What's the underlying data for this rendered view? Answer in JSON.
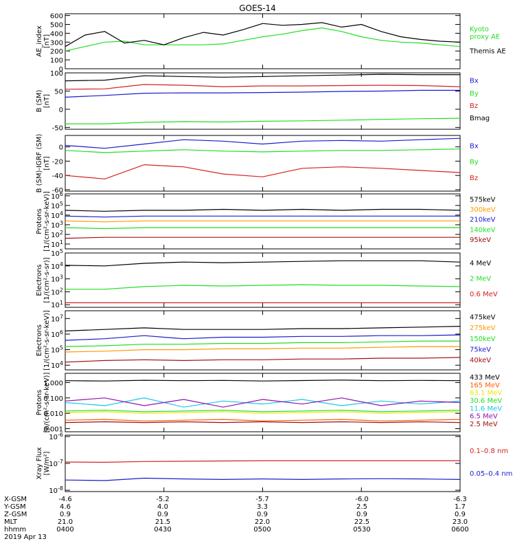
{
  "title": "GOES-14",
  "colors": {
    "black": "#000000",
    "red": "#d42020",
    "green": "#22dd22",
    "blue": "#1a1ad0",
    "orange": "#ff9900",
    "darkred": "#a01010",
    "yellow": "#e8e800",
    "cyan": "#18c8e8",
    "purple": "#9010b0",
    "orangered": "#ff5a00"
  },
  "footer": {
    "rows": [
      {
        "label": "X-GSM",
        "values": [
          "-4.6",
          "-5.2",
          "-5.7",
          "-6.0",
          "-6.3"
        ]
      },
      {
        "label": "Y-GSM",
        "values": [
          "4.6",
          "4.0",
          "3.3",
          "2.5",
          "1.7"
        ]
      },
      {
        "label": "Z-GSM",
        "values": [
          "0.9",
          "0.9",
          "0.9",
          "0.9",
          "0.9"
        ]
      },
      {
        "label": "MLT",
        "values": [
          "21.0",
          "21.5",
          "22.0",
          "22.5",
          "23.0"
        ]
      },
      {
        "label": "hhmm",
        "values": [
          "0400",
          "0430",
          "0500",
          "0530",
          "0600"
        ]
      }
    ],
    "date": "2019 Apr 13"
  },
  "chart_data": [
    {
      "type": "line",
      "ylabel": [
        "AE_index",
        "[nT]"
      ],
      "ylim": [
        0,
        620
      ],
      "yticks": [
        0,
        100,
        200,
        300,
        400,
        500,
        600
      ],
      "ytick_labels": [
        "0",
        "100",
        "200",
        "300",
        "400",
        "500",
        "600"
      ],
      "x": [
        0,
        0.05,
        0.1,
        0.15,
        0.2,
        0.25,
        0.3,
        0.35,
        0.4,
        0.45,
        0.5,
        0.55,
        0.6,
        0.65,
        0.7,
        0.75,
        0.8,
        0.85,
        0.9,
        0.95,
        1.0
      ],
      "series": [
        {
          "name": "Kyoto proxy AE",
          "legend": [
            "Kyoto",
            "proxy AE"
          ],
          "color": "green",
          "values": [
            200,
            250,
            300,
            310,
            270,
            270,
            270,
            270,
            280,
            320,
            360,
            390,
            430,
            460,
            420,
            360,
            320,
            300,
            290,
            270,
            250
          ]
        },
        {
          "name": "Themis AE",
          "legend": [
            "Themis AE"
          ],
          "color": "black",
          "values": [
            250,
            380,
            420,
            290,
            320,
            270,
            350,
            410,
            380,
            440,
            510,
            490,
            500,
            520,
            470,
            500,
            420,
            360,
            330,
            310,
            300
          ]
        }
      ]
    },
    {
      "type": "line",
      "ylabel": [
        "B (SM)",
        "[nT]"
      ],
      "ylim": [
        -55,
        100
      ],
      "yticks": [
        -50,
        0,
        50,
        100
      ],
      "ytick_labels": [
        "-50",
        "0",
        "50",
        "100"
      ],
      "x": [
        0,
        0.1,
        0.2,
        0.3,
        0.4,
        0.5,
        0.6,
        0.7,
        0.8,
        0.9,
        1.0
      ],
      "series": [
        {
          "name": "Bx",
          "legend": [
            "Bx"
          ],
          "color": "blue",
          "values": [
            33,
            38,
            44,
            45,
            45,
            46,
            47,
            49,
            50,
            52,
            52
          ]
        },
        {
          "name": "By",
          "legend": [
            "By"
          ],
          "color": "green",
          "values": [
            -40,
            -40,
            -36,
            -34,
            -35,
            -33,
            -32,
            -30,
            -28,
            -26,
            -25
          ]
        },
        {
          "name": "Bz",
          "legend": [
            "Bz"
          ],
          "color": "red",
          "values": [
            55,
            56,
            68,
            66,
            62,
            64,
            64,
            65,
            66,
            65,
            62
          ]
        },
        {
          "name": "Bmag",
          "legend": [
            "Bmag"
          ],
          "color": "black",
          "values": [
            78,
            80,
            92,
            90,
            88,
            90,
            92,
            94,
            96,
            95,
            95
          ]
        }
      ]
    },
    {
      "type": "line",
      "ylabel": [
        "B (SM)-IGRF (SM)",
        "[nT]"
      ],
      "ylim": [
        -62,
        16
      ],
      "yticks": [
        -60,
        -40,
        -20,
        0
      ],
      "ytick_labels": [
        "-60",
        "-40",
        "-20",
        "0"
      ],
      "x": [
        0,
        0.1,
        0.2,
        0.3,
        0.4,
        0.5,
        0.6,
        0.7,
        0.8,
        0.9,
        1.0
      ],
      "series": [
        {
          "name": "Bx",
          "legend": [
            "Bx"
          ],
          "color": "blue",
          "values": [
            2,
            -2,
            4,
            10,
            8,
            4,
            8,
            9,
            8,
            10,
            12
          ]
        },
        {
          "name": "By",
          "legend": [
            "By"
          ],
          "color": "green",
          "values": [
            -5,
            -8,
            -6,
            -4,
            -6,
            -7,
            -6,
            -5,
            -5,
            -4,
            -3
          ]
        },
        {
          "name": "Bz",
          "legend": [
            "Bz"
          ],
          "color": "red",
          "values": [
            -40,
            -45,
            -25,
            -28,
            -38,
            -42,
            -30,
            -28,
            -30,
            -33,
            -36
          ]
        }
      ]
    },
    {
      "type": "line",
      "log": true,
      "ylabel": [
        "Protons",
        "[1/(cm²-s-sr-keV)]"
      ],
      "ylim_log10": [
        0.5,
        6.2
      ],
      "yticks_exp": [
        1,
        2,
        3,
        4,
        5,
        6
      ],
      "x": [
        0,
        0.1,
        0.2,
        0.3,
        0.4,
        0.5,
        0.6,
        0.7,
        0.8,
        0.9,
        1.0
      ],
      "series": [
        {
          "name": "575keV",
          "legend": [
            "575keV"
          ],
          "color": "black",
          "values_log10": [
            4.5,
            4.4,
            4.5,
            4.5,
            4.6,
            4.5,
            4.6,
            4.5,
            4.6,
            4.6,
            4.5
          ]
        },
        {
          "name": "300keV",
          "legend": [
            "300keV"
          ],
          "color": "orange",
          "values_log10": [
            3.4,
            3.3,
            3.4,
            3.4,
            3.4,
            3.4,
            3.4,
            3.4,
            3.4,
            3.4,
            3.4
          ]
        },
        {
          "name": "210keV",
          "legend": [
            "210keV"
          ],
          "color": "blue",
          "values_log10": [
            3.9,
            3.8,
            3.9,
            3.9,
            3.9,
            3.9,
            3.9,
            3.9,
            3.9,
            3.9,
            3.9
          ]
        },
        {
          "name": "140keV",
          "legend": [
            "140keV"
          ],
          "color": "green",
          "values_log10": [
            2.7,
            2.6,
            2.7,
            2.7,
            2.7,
            2.7,
            2.7,
            2.7,
            2.7,
            2.7,
            2.7
          ]
        },
        {
          "name": "95keV",
          "legend": [
            "95keV"
          ],
          "color": "darkred",
          "values_log10": [
            1.6,
            1.7,
            1.7,
            1.7,
            1.7,
            1.7,
            1.7,
            1.7,
            1.7,
            1.7,
            1.7
          ]
        }
      ]
    },
    {
      "type": "line",
      "log": true,
      "ylabel": [
        "Electrons",
        "[1/(cm²-s-sr)]"
      ],
      "ylim_log10": [
        0.8,
        5.0
      ],
      "yticks_exp": [
        1,
        2,
        3,
        4,
        5
      ],
      "x": [
        0,
        0.1,
        0.2,
        0.3,
        0.4,
        0.5,
        0.6,
        0.7,
        0.8,
        0.9,
        1.0
      ],
      "series": [
        {
          "name": "4 MeV",
          "legend": [
            "4 MeV"
          ],
          "color": "black",
          "values_log10": [
            4.05,
            4.0,
            4.2,
            4.3,
            4.25,
            4.3,
            4.35,
            4.4,
            4.4,
            4.4,
            4.3
          ]
        },
        {
          "name": "2 MeV",
          "legend": [
            "2 MeV"
          ],
          "color": "green",
          "values_log10": [
            2.2,
            2.2,
            2.4,
            2.5,
            2.45,
            2.5,
            2.55,
            2.5,
            2.5,
            2.45,
            2.4
          ]
        },
        {
          "name": "0.6 MeV",
          "legend": [
            "0.6 MeV"
          ],
          "color": "red",
          "values_log10": [
            1.15,
            1.15,
            1.15,
            1.15,
            1.15,
            1.15,
            1.15,
            1.15,
            1.15,
            1.15,
            1.15
          ]
        }
      ]
    },
    {
      "type": "line",
      "log": true,
      "ylabel": [
        "Electrons",
        "[1/(cm²-s-sr-keV)]"
      ],
      "ylim_log10": [
        3.7,
        7.5
      ],
      "yticks_exp": [
        4,
        5,
        6,
        7
      ],
      "x": [
        0,
        0.1,
        0.2,
        0.3,
        0.4,
        0.5,
        0.6,
        0.7,
        0.8,
        0.9,
        1.0
      ],
      "series": [
        {
          "name": "475keV",
          "legend": [
            "475keV"
          ],
          "color": "black",
          "values_log10": [
            6.2,
            6.3,
            6.4,
            6.3,
            6.3,
            6.3,
            6.35,
            6.35,
            6.4,
            6.45,
            6.5
          ]
        },
        {
          "name": "275keV",
          "legend": [
            "275keV"
          ],
          "color": "orange",
          "values_log10": [
            4.85,
            4.9,
            5.0,
            5.0,
            5.05,
            5.05,
            5.1,
            5.1,
            5.15,
            5.2,
            5.2
          ]
        },
        {
          "name": "150keV",
          "legend": [
            "150keV"
          ],
          "color": "green",
          "values_log10": [
            5.2,
            5.25,
            5.35,
            5.35,
            5.4,
            5.4,
            5.45,
            5.45,
            5.5,
            5.55,
            5.55
          ]
        },
        {
          "name": "75keV",
          "legend": [
            "75keV"
          ],
          "color": "blue",
          "values_log10": [
            5.6,
            5.7,
            5.9,
            5.7,
            5.8,
            5.8,
            5.85,
            5.85,
            5.9,
            5.9,
            5.95
          ]
        },
        {
          "name": "40keV",
          "legend": [
            "40keV"
          ],
          "color": "darkred",
          "values_log10": [
            4.2,
            4.3,
            4.35,
            4.3,
            4.35,
            4.35,
            4.4,
            4.4,
            4.45,
            4.45,
            4.5
          ]
        }
      ]
    },
    {
      "type": "line",
      "log": true,
      "ylabel": [
        "Protons",
        "[p/(cm²-s-sr-keV)]"
      ],
      "ylim_log10": [
        -3.2,
        0.6
      ],
      "yticks": [
        0.001,
        0.01,
        0.1,
        1
      ],
      "ytick_labels": [
        "0.001",
        "0.010",
        "0.100",
        "1.000"
      ],
      "x": [
        0,
        0.1,
        0.2,
        0.3,
        0.4,
        0.5,
        0.6,
        0.7,
        0.8,
        0.9,
        1.0
      ],
      "series": [
        {
          "name": "433 MeV",
          "legend": [
            "433 MeV"
          ],
          "color": "black",
          "values_log10": [
            0.12,
            0.1,
            0.15,
            0.12,
            0.14,
            0.1,
            0.13,
            0.16,
            0.12,
            0.14,
            0.12
          ]
        },
        {
          "name": "165 MeV",
          "legend": [
            "165 MeV"
          ],
          "color": "orangered",
          "values_log10": [
            -2.45,
            -2.4,
            -2.5,
            -2.45,
            -2.4,
            -2.5,
            -2.45,
            -2.4,
            -2.5,
            -2.45,
            -2.4
          ]
        },
        {
          "name": "63.1 MeV",
          "legend": [
            "63.1 MeV"
          ],
          "color": "yellow",
          "values_log10": [
            -1.95,
            -1.9,
            -2.0,
            -1.95,
            -1.9,
            -2.0,
            -1.95,
            -1.9,
            -2.0,
            -1.95,
            -1.9
          ]
        },
        {
          "name": "30.6 MeV",
          "legend": [
            "30.6 MeV"
          ],
          "color": "green",
          "values_log10": [
            -1.85,
            -1.8,
            -1.9,
            -1.85,
            -1.8,
            -1.9,
            -1.85,
            -1.8,
            -1.9,
            -1.85,
            -1.8
          ]
        },
        {
          "name": "11.6 MeV",
          "legend": [
            "11.6 MeV"
          ],
          "color": "cyan",
          "values_log10": [
            -1.3,
            -1.5,
            -1.0,
            -1.6,
            -1.2,
            -1.4,
            -1.1,
            -1.5,
            -1.2,
            -1.4,
            -1.2
          ]
        },
        {
          "name": "6.5 MeV",
          "legend": [
            "6.5 MeV"
          ],
          "color": "purple",
          "values_log10": [
            -1.2,
            -1.0,
            -1.5,
            -1.1,
            -1.6,
            -1.1,
            -1.4,
            -1.0,
            -1.5,
            -1.2,
            -1.3
          ]
        },
        {
          "name": "2.5 MeV",
          "legend": [
            "2.5 MeV"
          ],
          "color": "darkred",
          "values_log10": [
            -2.6,
            -2.55,
            -2.6,
            -2.55,
            -2.6,
            -2.55,
            -2.6,
            -2.55,
            -2.6,
            -2.55,
            -2.6
          ]
        }
      ]
    },
    {
      "type": "line",
      "log": true,
      "ylabel": [
        "Xray Flux",
        "[W/m²]"
      ],
      "ylim_log10": [
        -8.05,
        -5.95
      ],
      "yticks_exp": [
        -8,
        -7,
        -6
      ],
      "x": [
        0,
        0.1,
        0.2,
        0.3,
        0.4,
        0.5,
        0.6,
        0.7,
        0.8,
        0.9,
        1.0
      ],
      "series": [
        {
          "name": "0.1-0.8 nm",
          "legend": [
            "0.1–0.8 nm"
          ],
          "color": "red",
          "values_log10": [
            -6.95,
            -6.96,
            -6.93,
            -6.92,
            -6.91,
            -6.9,
            -6.9,
            -6.9,
            -6.9,
            -6.9,
            -6.9
          ]
        },
        {
          "name": "0.05-0.4 nm",
          "legend": [
            "0.05–0.4 nm"
          ],
          "color": "blue",
          "values_log10": [
            -7.62,
            -7.64,
            -7.55,
            -7.58,
            -7.6,
            -7.58,
            -7.6,
            -7.58,
            -7.57,
            -7.58,
            -7.6
          ]
        }
      ]
    }
  ],
  "x_axis": {
    "ticks": [
      0,
      0.25,
      0.5,
      0.75,
      1.0
    ]
  }
}
